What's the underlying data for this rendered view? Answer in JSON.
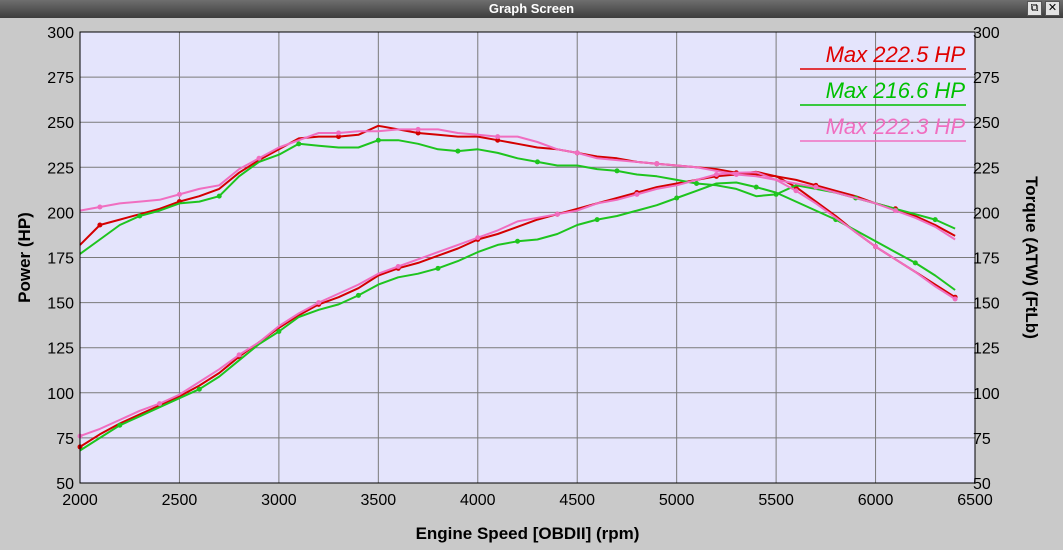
{
  "window": {
    "title": "Graph Screen",
    "restore_glyph": "⧉",
    "close_glyph": "✕"
  },
  "chart_data": {
    "type": "line",
    "xlabel": "Engine Speed [OBDII] (rpm)",
    "ylabel": "Power (HP)",
    "y2label": "Torque (ATW) (FtLb)",
    "xlim": [
      2000,
      6500
    ],
    "ylim": [
      50,
      300
    ],
    "y2lim": [
      50,
      300
    ],
    "grid": true,
    "legend_position": "top-right",
    "x_ticks": [
      "2000",
      "2500",
      "3000",
      "3500",
      "4000",
      "4500",
      "5000",
      "5500",
      "6000",
      "6500"
    ],
    "y_ticks": [
      "50",
      "75",
      "100",
      "125",
      "150",
      "175",
      "200",
      "225",
      "250",
      "275",
      "300"
    ],
    "y2_ticks": [
      "50",
      "75",
      "100",
      "125",
      "150",
      "175",
      "200",
      "225",
      "250",
      "275",
      "300"
    ],
    "plot_background": "#e4e4fc",
    "legend": [
      {
        "label": "Max 222.5 HP",
        "color": "#e00000"
      },
      {
        "label": "Max 216.6 HP",
        "color": "#00c000"
      },
      {
        "label": "Max 222.3 HP",
        "color": "#f06ec0"
      }
    ],
    "series": [
      {
        "color": "#d40000",
        "kind": "power",
        "points": [
          [
            2000,
            70
          ],
          [
            2100,
            77
          ],
          [
            2200,
            83
          ],
          [
            2300,
            88
          ],
          [
            2400,
            93
          ],
          [
            2500,
            98
          ],
          [
            2600,
            104
          ],
          [
            2700,
            111
          ],
          [
            2800,
            120
          ],
          [
            2900,
            128
          ],
          [
            3000,
            136
          ],
          [
            3100,
            143
          ],
          [
            3200,
            149
          ],
          [
            3300,
            153
          ],
          [
            3400,
            158
          ],
          [
            3500,
            165
          ],
          [
            3600,
            169
          ],
          [
            3700,
            172
          ],
          [
            3800,
            176
          ],
          [
            3900,
            180
          ],
          [
            4000,
            185
          ],
          [
            4100,
            188
          ],
          [
            4200,
            192
          ],
          [
            4300,
            196
          ],
          [
            4400,
            199
          ],
          [
            4500,
            202
          ],
          [
            4600,
            205
          ],
          [
            4700,
            208
          ],
          [
            4800,
            211
          ],
          [
            4900,
            214
          ],
          [
            5000,
            216
          ],
          [
            5100,
            218
          ],
          [
            5200,
            220
          ],
          [
            5300,
            221
          ],
          [
            5400,
            222.5
          ],
          [
            5500,
            220
          ],
          [
            5600,
            214
          ],
          [
            5700,
            206
          ],
          [
            5800,
            198
          ],
          [
            5900,
            189
          ],
          [
            6000,
            181
          ],
          [
            6100,
            174
          ],
          [
            6200,
            167
          ],
          [
            6300,
            160
          ],
          [
            6400,
            153
          ]
        ]
      },
      {
        "color": "#d40000",
        "kind": "torque",
        "points": [
          [
            2000,
            182
          ],
          [
            2100,
            193
          ],
          [
            2200,
            196
          ],
          [
            2300,
            199
          ],
          [
            2400,
            202
          ],
          [
            2500,
            206
          ],
          [
            2600,
            209
          ],
          [
            2700,
            213
          ],
          [
            2800,
            222
          ],
          [
            2900,
            229
          ],
          [
            3000,
            235
          ],
          [
            3100,
            241
          ],
          [
            3200,
            242
          ],
          [
            3300,
            242
          ],
          [
            3400,
            243
          ],
          [
            3500,
            248
          ],
          [
            3600,
            246
          ],
          [
            3700,
            244
          ],
          [
            3800,
            243
          ],
          [
            3900,
            242
          ],
          [
            4000,
            242
          ],
          [
            4100,
            240
          ],
          [
            4200,
            238
          ],
          [
            4300,
            236
          ],
          [
            4400,
            235
          ],
          [
            4500,
            233
          ],
          [
            4600,
            231
          ],
          [
            4700,
            230
          ],
          [
            4800,
            228
          ],
          [
            4900,
            227
          ],
          [
            5000,
            226
          ],
          [
            5100,
            225
          ],
          [
            5200,
            224
          ],
          [
            5300,
            222
          ],
          [
            5400,
            221
          ],
          [
            5500,
            220
          ],
          [
            5600,
            218
          ],
          [
            5700,
            215
          ],
          [
            5800,
            212
          ],
          [
            5900,
            209
          ],
          [
            6000,
            205
          ],
          [
            6100,
            202
          ],
          [
            6200,
            198
          ],
          [
            6300,
            193
          ],
          [
            6400,
            187
          ]
        ]
      },
      {
        "color": "#1ec41e",
        "kind": "power",
        "points": [
          [
            2000,
            68
          ],
          [
            2100,
            75
          ],
          [
            2200,
            82
          ],
          [
            2300,
            87
          ],
          [
            2400,
            92
          ],
          [
            2500,
            97
          ],
          [
            2600,
            102
          ],
          [
            2700,
            109
          ],
          [
            2800,
            118
          ],
          [
            2900,
            127
          ],
          [
            3000,
            134
          ],
          [
            3100,
            142
          ],
          [
            3200,
            146
          ],
          [
            3300,
            149
          ],
          [
            3400,
            154
          ],
          [
            3500,
            160
          ],
          [
            3600,
            164
          ],
          [
            3700,
            166
          ],
          [
            3800,
            169
          ],
          [
            3900,
            173
          ],
          [
            4000,
            178
          ],
          [
            4100,
            182
          ],
          [
            4200,
            184
          ],
          [
            4300,
            185
          ],
          [
            4400,
            188
          ],
          [
            4500,
            193
          ],
          [
            4600,
            196
          ],
          [
            4700,
            198
          ],
          [
            4800,
            201
          ],
          [
            4900,
            204
          ],
          [
            5000,
            208
          ],
          [
            5100,
            212
          ],
          [
            5200,
            216
          ],
          [
            5300,
            216.6
          ],
          [
            5400,
            214
          ],
          [
            5500,
            211
          ],
          [
            5600,
            206
          ],
          [
            5700,
            201
          ],
          [
            5800,
            196
          ],
          [
            5900,
            190
          ],
          [
            6000,
            184
          ],
          [
            6100,
            178
          ],
          [
            6200,
            172
          ],
          [
            6300,
            165
          ],
          [
            6400,
            157
          ]
        ]
      },
      {
        "color": "#1ec41e",
        "kind": "torque",
        "points": [
          [
            2000,
            177
          ],
          [
            2100,
            185
          ],
          [
            2200,
            193
          ],
          [
            2300,
            198
          ],
          [
            2400,
            201
          ],
          [
            2500,
            205
          ],
          [
            2600,
            206
          ],
          [
            2700,
            209
          ],
          [
            2800,
            220
          ],
          [
            2900,
            228
          ],
          [
            3000,
            232
          ],
          [
            3100,
            238
          ],
          [
            3200,
            237
          ],
          [
            3300,
            236
          ],
          [
            3400,
            236
          ],
          [
            3500,
            240
          ],
          [
            3600,
            240
          ],
          [
            3700,
            238
          ],
          [
            3800,
            235
          ],
          [
            3900,
            234
          ],
          [
            4000,
            235
          ],
          [
            4100,
            233
          ],
          [
            4200,
            230
          ],
          [
            4300,
            228
          ],
          [
            4400,
            226
          ],
          [
            4500,
            226
          ],
          [
            4600,
            224
          ],
          [
            4700,
            223
          ],
          [
            4800,
            221
          ],
          [
            4900,
            220
          ],
          [
            5000,
            218
          ],
          [
            5100,
            216
          ],
          [
            5200,
            215
          ],
          [
            5300,
            213
          ],
          [
            5400,
            209
          ],
          [
            5500,
            210
          ],
          [
            5600,
            215
          ],
          [
            5700,
            213
          ],
          [
            5800,
            211
          ],
          [
            5900,
            208
          ],
          [
            6000,
            205
          ],
          [
            6100,
            202
          ],
          [
            6200,
            199
          ],
          [
            6300,
            196
          ],
          [
            6400,
            191
          ]
        ]
      },
      {
        "color": "#f06ec0",
        "kind": "power",
        "points": [
          [
            2000,
            76
          ],
          [
            2100,
            80
          ],
          [
            2200,
            85
          ],
          [
            2300,
            90
          ],
          [
            2400,
            94
          ],
          [
            2500,
            99
          ],
          [
            2600,
            106
          ],
          [
            2700,
            113
          ],
          [
            2800,
            121
          ],
          [
            2900,
            128
          ],
          [
            3000,
            137
          ],
          [
            3100,
            144
          ],
          [
            3200,
            150
          ],
          [
            3300,
            155
          ],
          [
            3400,
            160
          ],
          [
            3500,
            166
          ],
          [
            3600,
            170
          ],
          [
            3700,
            174
          ],
          [
            3800,
            178
          ],
          [
            3900,
            182
          ],
          [
            4000,
            186
          ],
          [
            4100,
            190
          ],
          [
            4200,
            195
          ],
          [
            4300,
            197
          ],
          [
            4400,
            199
          ],
          [
            4500,
            201
          ],
          [
            4600,
            205
          ],
          [
            4700,
            207
          ],
          [
            4800,
            210
          ],
          [
            4900,
            213
          ],
          [
            5000,
            215
          ],
          [
            5100,
            218
          ],
          [
            5200,
            221
          ],
          [
            5300,
            222
          ],
          [
            5400,
            222.3
          ],
          [
            5500,
            218
          ],
          [
            5600,
            212
          ],
          [
            5700,
            205
          ],
          [
            5800,
            197
          ],
          [
            5900,
            189
          ],
          [
            6000,
            181
          ],
          [
            6100,
            174
          ],
          [
            6200,
            167
          ],
          [
            6300,
            159
          ],
          [
            6400,
            152
          ]
        ]
      },
      {
        "color": "#f06ec0",
        "kind": "torque",
        "points": [
          [
            2000,
            201
          ],
          [
            2100,
            203
          ],
          [
            2200,
            205
          ],
          [
            2300,
            206
          ],
          [
            2400,
            207
          ],
          [
            2500,
            210
          ],
          [
            2600,
            213
          ],
          [
            2700,
            215
          ],
          [
            2800,
            224
          ],
          [
            2900,
            230
          ],
          [
            3000,
            236
          ],
          [
            3100,
            240
          ],
          [
            3200,
            244
          ],
          [
            3300,
            244
          ],
          [
            3400,
            245
          ],
          [
            3500,
            245
          ],
          [
            3600,
            246
          ],
          [
            3700,
            246
          ],
          [
            3800,
            246
          ],
          [
            3900,
            244
          ],
          [
            4000,
            243
          ],
          [
            4100,
            242
          ],
          [
            4200,
            242
          ],
          [
            4300,
            239
          ],
          [
            4400,
            235
          ],
          [
            4500,
            233
          ],
          [
            4600,
            230
          ],
          [
            4700,
            229
          ],
          [
            4800,
            228
          ],
          [
            4900,
            227
          ],
          [
            5000,
            226
          ],
          [
            5100,
            225
          ],
          [
            5200,
            223
          ],
          [
            5300,
            221
          ],
          [
            5400,
            220
          ],
          [
            5500,
            218
          ],
          [
            5600,
            216
          ],
          [
            5700,
            214
          ],
          [
            5800,
            211
          ],
          [
            5900,
            208
          ],
          [
            6000,
            205
          ],
          [
            6100,
            201
          ],
          [
            6200,
            197
          ],
          [
            6300,
            192
          ],
          [
            6400,
            185
          ]
        ]
      }
    ]
  }
}
